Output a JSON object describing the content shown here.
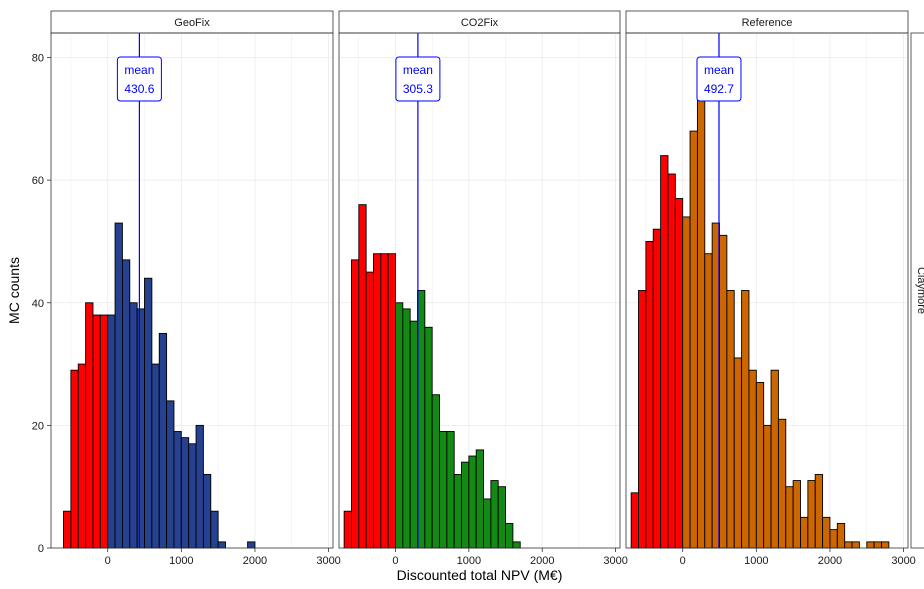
{
  "chart_data": {
    "type": "bar",
    "xlabel": "Discounted total NPV (M€)",
    "ylabel": "MC counts",
    "ylim": [
      0,
      84
    ],
    "xlim": [
      -770,
      3060
    ],
    "x_ticks": [
      0,
      1000,
      2000,
      3000
    ],
    "x_tick_labels": [
      "0",
      "1000",
      "2000",
      "3000"
    ],
    "y_ticks": [
      0,
      20,
      40,
      60,
      80
    ],
    "y_tick_labels": [
      "0",
      "20",
      "40",
      "60",
      "80"
    ],
    "row_strip_label": "Claymore",
    "bin_width": 100,
    "mean_label_word": "mean",
    "grid": true,
    "colors": {
      "negative": "#ff0000",
      "mean_line": "#0000ff",
      "panel_border": "#333333",
      "grid": "#ebebeb",
      "strip_bg": "#ffffff"
    },
    "panels": [
      {
        "name": "GeoFix",
        "fill": "#26418f",
        "mean": 430.6,
        "mean_text": "430.6",
        "bins": [
          {
            "x": -550,
            "count": 6
          },
          {
            "x": -450,
            "count": 29
          },
          {
            "x": -350,
            "count": 30
          },
          {
            "x": -250,
            "count": 40
          },
          {
            "x": -150,
            "count": 38
          },
          {
            "x": -50,
            "count": 38
          },
          {
            "x": 50,
            "count": 38
          },
          {
            "x": 150,
            "count": 53
          },
          {
            "x": 250,
            "count": 47
          },
          {
            "x": 350,
            "count": 40
          },
          {
            "x": 450,
            "count": 39
          },
          {
            "x": 550,
            "count": 44
          },
          {
            "x": 650,
            "count": 30
          },
          {
            "x": 750,
            "count": 35
          },
          {
            "x": 850,
            "count": 24
          },
          {
            "x": 950,
            "count": 19
          },
          {
            "x": 1050,
            "count": 18
          },
          {
            "x": 1150,
            "count": 17
          },
          {
            "x": 1250,
            "count": 20
          },
          {
            "x": 1350,
            "count": 12
          },
          {
            "x": 1450,
            "count": 6
          },
          {
            "x": 1550,
            "count": 1
          },
          {
            "x": 1950,
            "count": 1
          },
          {
            "x": 2050,
            "count": 0
          },
          {
            "x": 2150,
            "count": 0
          },
          {
            "x": 2250,
            "count": 0
          },
          {
            "x": 2350,
            "count": 0
          },
          {
            "x": 2450,
            "count": 0
          },
          {
            "x": 2550,
            "count": 0
          },
          {
            "x": 2650,
            "count": 0
          },
          {
            "x": 2750,
            "count": 0
          },
          {
            "x": 2850,
            "count": 0
          },
          {
            "x": 2950,
            "count": 0
          }
        ]
      },
      {
        "name": "CO2Fix",
        "fill": "#138a13",
        "mean": 305.3,
        "mean_text": "305.3",
        "bins": [
          {
            "x": -650,
            "count": 6
          },
          {
            "x": -550,
            "count": 47
          },
          {
            "x": -450,
            "count": 56
          },
          {
            "x": -350,
            "count": 45
          },
          {
            "x": -250,
            "count": 48
          },
          {
            "x": -150,
            "count": 48
          },
          {
            "x": -50,
            "count": 48
          },
          {
            "x": 50,
            "count": 40
          },
          {
            "x": 150,
            "count": 39
          },
          {
            "x": 250,
            "count": 37
          },
          {
            "x": 350,
            "count": 42
          },
          {
            "x": 450,
            "count": 36
          },
          {
            "x": 550,
            "count": 25
          },
          {
            "x": 650,
            "count": 19
          },
          {
            "x": 750,
            "count": 19
          },
          {
            "x": 850,
            "count": 12
          },
          {
            "x": 950,
            "count": 14
          },
          {
            "x": 1050,
            "count": 15
          },
          {
            "x": 1150,
            "count": 16
          },
          {
            "x": 1250,
            "count": 8
          },
          {
            "x": 1350,
            "count": 11
          },
          {
            "x": 1450,
            "count": 10
          },
          {
            "x": 1550,
            "count": 4
          },
          {
            "x": 1650,
            "count": 1
          },
          {
            "x": 1750,
            "count": 0
          },
          {
            "x": 1850,
            "count": 0
          },
          {
            "x": 1950,
            "count": 0
          },
          {
            "x": 2050,
            "count": 0
          },
          {
            "x": 2150,
            "count": 0
          },
          {
            "x": 2250,
            "count": 0
          },
          {
            "x": 2350,
            "count": 0
          },
          {
            "x": 2450,
            "count": 0
          },
          {
            "x": 2550,
            "count": 0
          },
          {
            "x": 2650,
            "count": 0
          },
          {
            "x": 2750,
            "count": 0
          },
          {
            "x": 2850,
            "count": 0
          },
          {
            "x": 2950,
            "count": 0
          }
        ]
      },
      {
        "name": "Reference",
        "fill": "#cc6600",
        "mean": 492.7,
        "mean_text": "492.7",
        "bins": [
          {
            "x": -650,
            "count": 9
          },
          {
            "x": -550,
            "count": 42
          },
          {
            "x": -450,
            "count": 50
          },
          {
            "x": -350,
            "count": 52
          },
          {
            "x": -250,
            "count": 64
          },
          {
            "x": -150,
            "count": 61
          },
          {
            "x": -50,
            "count": 57
          },
          {
            "x": 50,
            "count": 54
          },
          {
            "x": 150,
            "count": 68
          },
          {
            "x": 250,
            "count": 75
          },
          {
            "x": 350,
            "count": 48
          },
          {
            "x": 450,
            "count": 53
          },
          {
            "x": 550,
            "count": 51
          },
          {
            "x": 650,
            "count": 42
          },
          {
            "x": 750,
            "count": 31
          },
          {
            "x": 850,
            "count": 42
          },
          {
            "x": 950,
            "count": 29
          },
          {
            "x": 1050,
            "count": 27
          },
          {
            "x": 1150,
            "count": 20
          },
          {
            "x": 1250,
            "count": 29
          },
          {
            "x": 1350,
            "count": 21
          },
          {
            "x": 1450,
            "count": 10
          },
          {
            "x": 1550,
            "count": 11
          },
          {
            "x": 1650,
            "count": 5
          },
          {
            "x": 1750,
            "count": 11
          },
          {
            "x": 1850,
            "count": 12
          },
          {
            "x": 1950,
            "count": 5
          },
          {
            "x": 2050,
            "count": 3
          },
          {
            "x": 2150,
            "count": 4
          },
          {
            "x": 2250,
            "count": 1
          },
          {
            "x": 2350,
            "count": 1
          },
          {
            "x": 2450,
            "count": 0
          },
          {
            "x": 2550,
            "count": 1
          },
          {
            "x": 2650,
            "count": 1
          },
          {
            "x": 2750,
            "count": 1
          }
        ]
      }
    ]
  }
}
